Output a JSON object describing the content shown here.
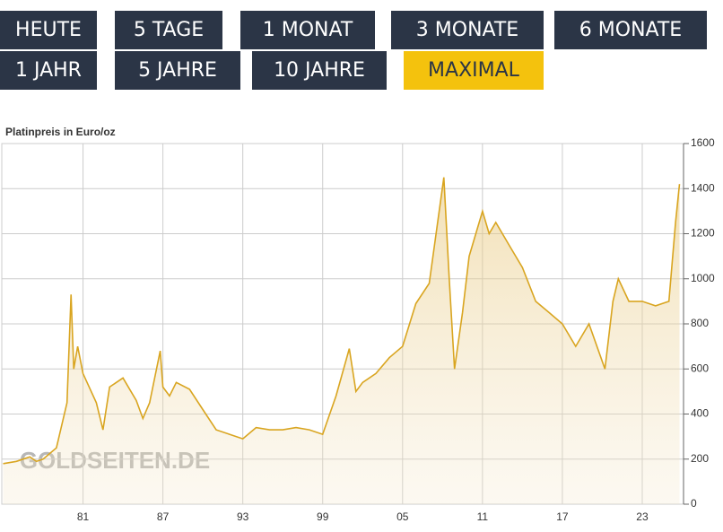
{
  "buttons": [
    {
      "label": "HEUTE"
    },
    {
      "label": "5 TAGE"
    },
    {
      "label": "1 MONAT"
    },
    {
      "label": "3 MONATE"
    },
    {
      "label": "6 MONATE"
    },
    {
      "label": "1 JAHR"
    },
    {
      "label": "5 JAHRE"
    },
    {
      "label": "10 JAHRE"
    },
    {
      "label": "MAXIMAL"
    }
  ],
  "active_button": 8,
  "chart_data": {
    "type": "area",
    "title": "Platinpreis in Euro/oz",
    "watermark": "GOLDSEITEN.DE",
    "color": "#d9a520",
    "x": [
      1975,
      1976,
      1977,
      1977.5,
      1978,
      1979,
      1979.8,
      1980.1,
      1980.3,
      1980.6,
      1981,
      1982,
      1982.5,
      1983,
      1984,
      1985,
      1985.5,
      1986,
      1986.8,
      1987,
      1987.5,
      1988,
      1989,
      1990,
      1991,
      1992,
      1993,
      1994,
      1995,
      1996,
      1997,
      1998,
      1999,
      2000,
      2001,
      2001.5,
      2002,
      2003,
      2004,
      2005,
      2006,
      2007,
      2008.1,
      2008.5,
      2008.9,
      2009.5,
      2010,
      2011,
      2011.5,
      2012,
      2013,
      2014,
      2015,
      2016,
      2017,
      2018,
      2019,
      2020.2,
      2020.8,
      2021.2,
      2022,
      2023,
      2024,
      2025,
      2025.5,
      2025.8
    ],
    "y": [
      180,
      190,
      210,
      190,
      200,
      250,
      450,
      930,
      600,
      700,
      580,
      450,
      330,
      520,
      560,
      460,
      380,
      450,
      680,
      520,
      480,
      540,
      510,
      420,
      330,
      310,
      290,
      340,
      330,
      330,
      340,
      330,
      310,
      480,
      690,
      500,
      540,
      580,
      650,
      700,
      890,
      980,
      1450,
      1000,
      600,
      850,
      1100,
      1300,
      1200,
      1250,
      1150,
      1050,
      900,
      850,
      800,
      700,
      800,
      600,
      900,
      1000,
      900,
      900,
      880,
      900,
      1250,
      1420
    ],
    "xlim": [
      1974.9,
      2026.1
    ],
    "ylim": [
      0,
      1600
    ],
    "xticks": [
      {
        "value": 1981,
        "label": "81"
      },
      {
        "value": 1987,
        "label": "87"
      },
      {
        "value": 1993,
        "label": "93"
      },
      {
        "value": 1999,
        "label": "99"
      },
      {
        "value": 2005,
        "label": "05"
      },
      {
        "value": 2011,
        "label": "11"
      },
      {
        "value": 2017,
        "label": "17"
      },
      {
        "value": 2023,
        "label": "23"
      }
    ],
    "yticks": [
      0,
      200,
      400,
      600,
      800,
      1000,
      1200,
      1400,
      1600
    ],
    "grid": true
  }
}
